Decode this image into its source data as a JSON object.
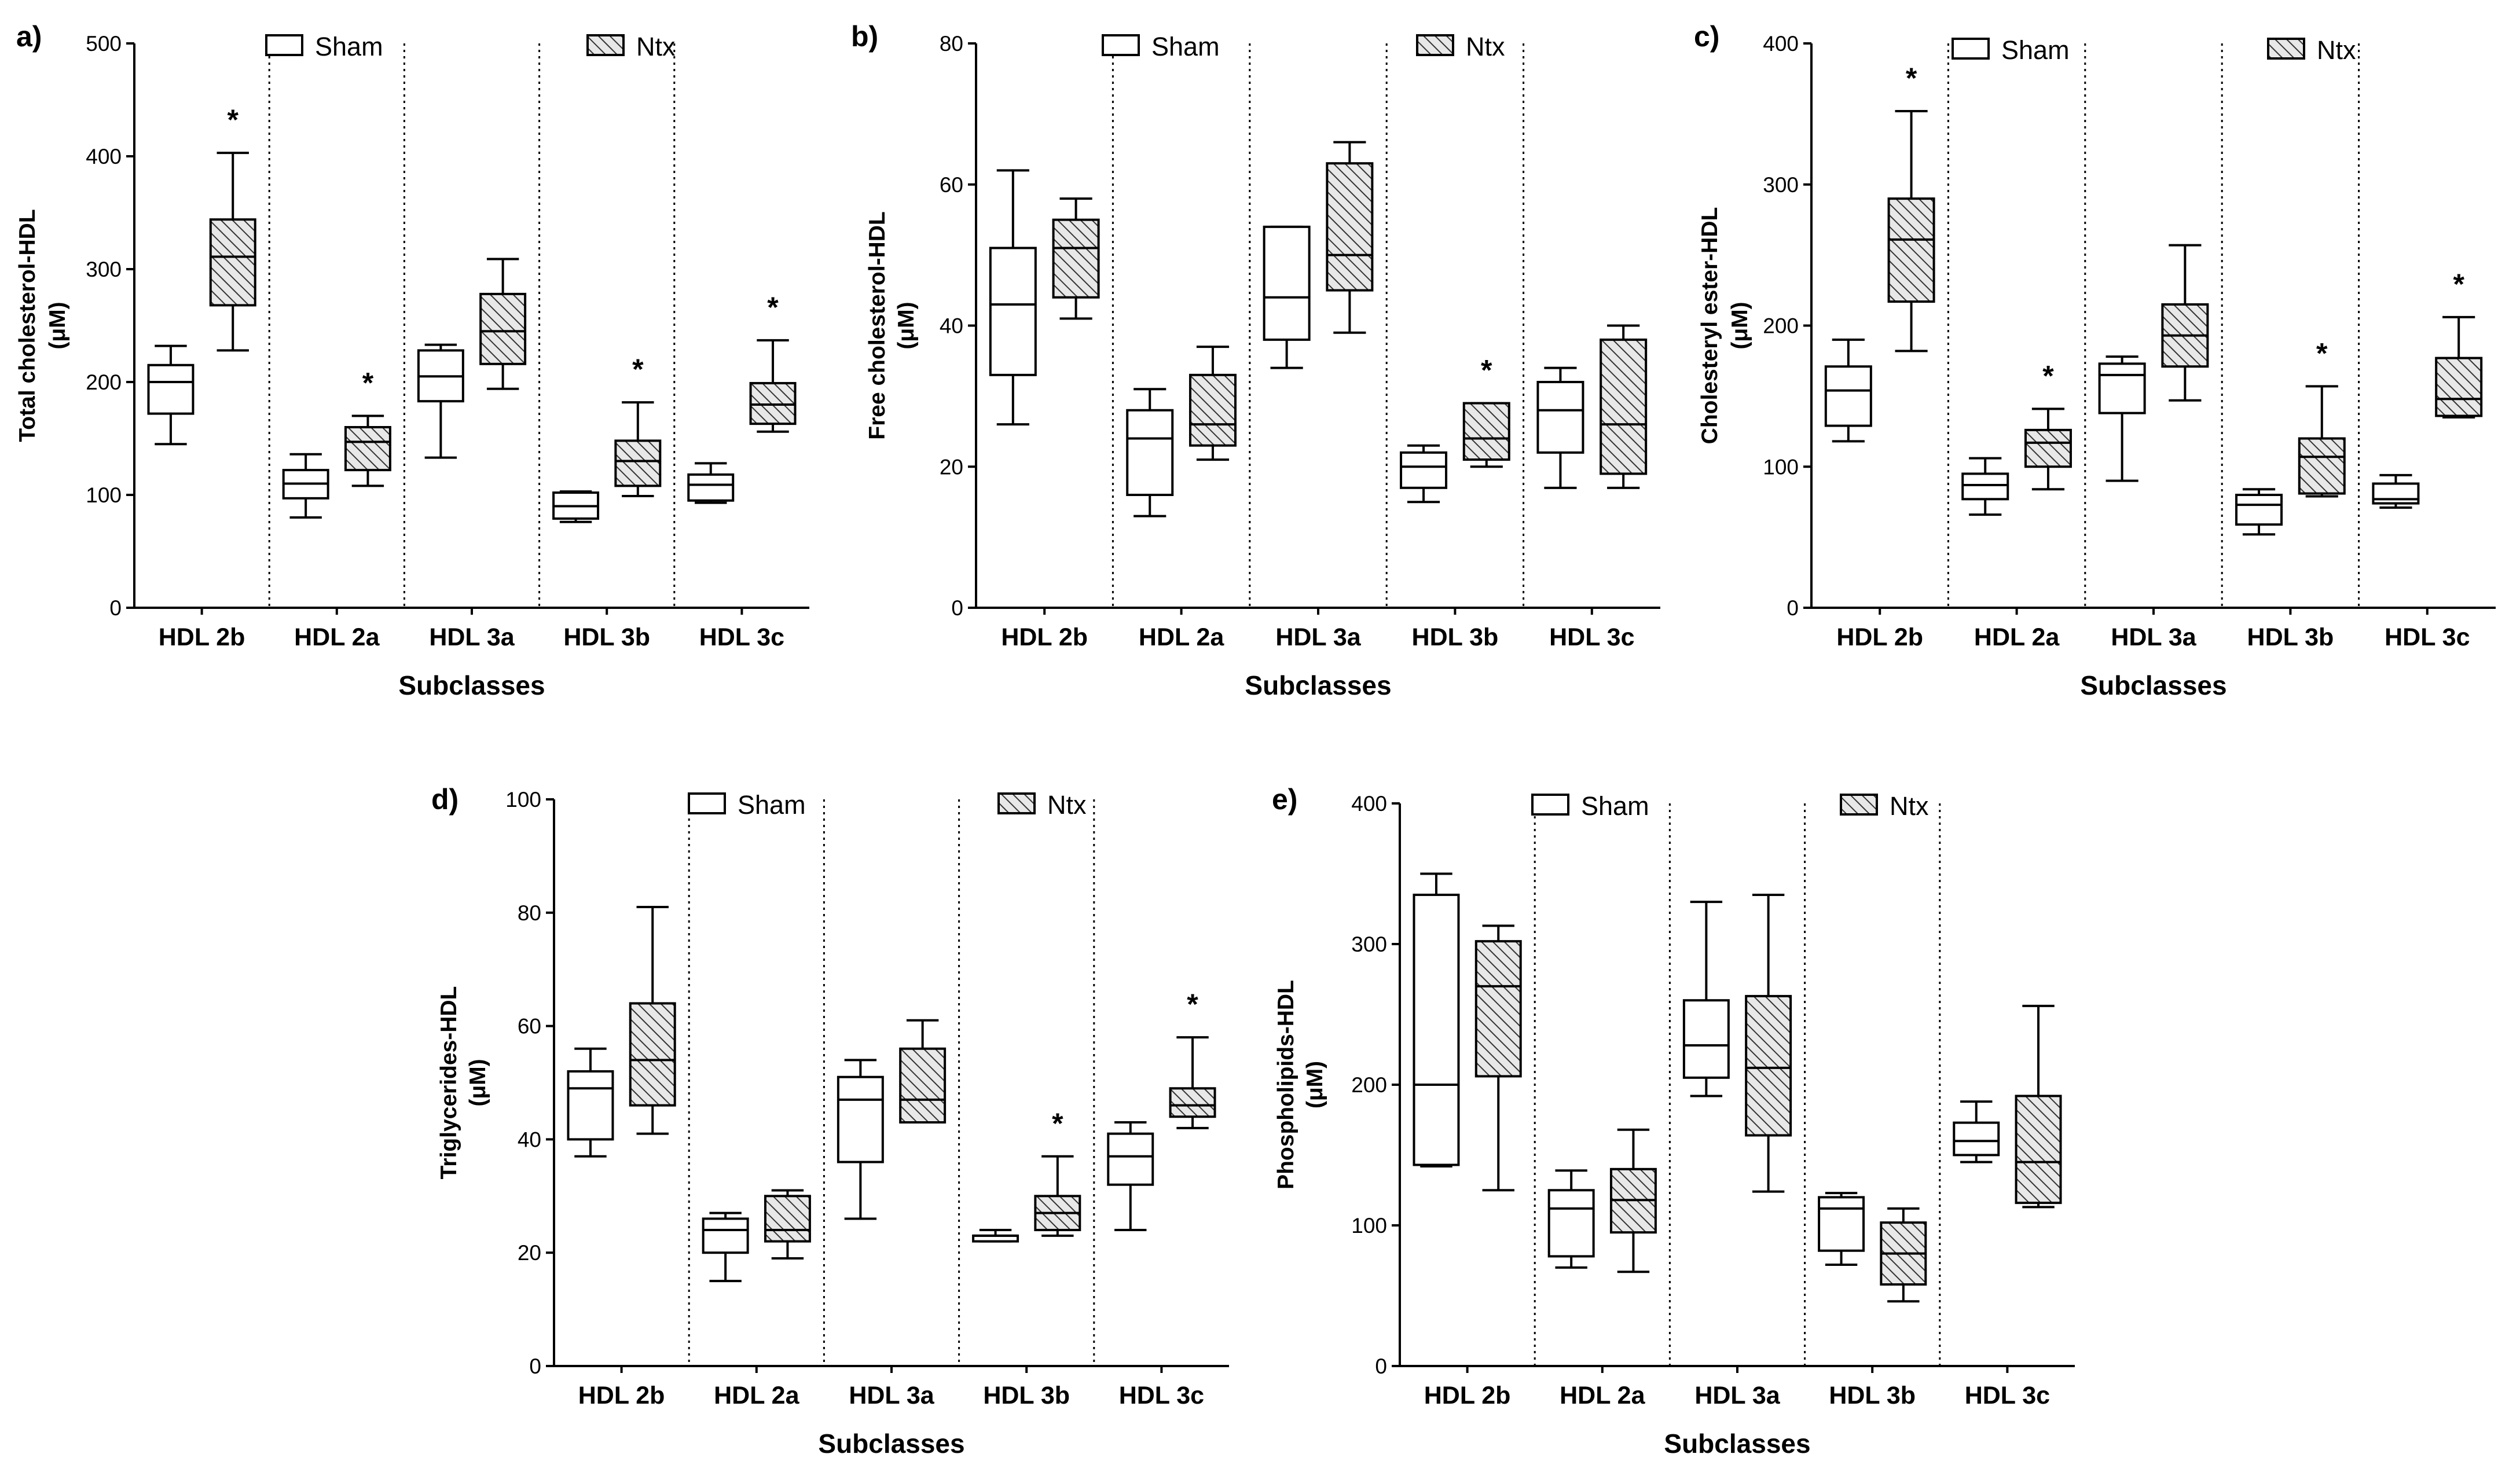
{
  "figure": {
    "colors": {
      "sham_fill": "#ffffff",
      "ntx_fill": "#e8e8e8",
      "ntx_hatch": "#333333",
      "line": "#000000"
    },
    "legend": {
      "sham": "Sham",
      "ntx": "Ntx"
    }
  },
  "chart_data": [
    {
      "panel": "a)",
      "type": "box",
      "ylabel_line1": "Total cholesterol-HDL",
      "ylabel_line2": "(μM)",
      "xlabel": "Subclasses",
      "ylim": [
        0,
        500
      ],
      "yticks": [
        0,
        100,
        200,
        300,
        400,
        500
      ],
      "categories": [
        "HDL 2b",
        "HDL 2a",
        "HDL 3a",
        "HDL 3b",
        "HDL 3c"
      ],
      "series": [
        {
          "name": "Sham",
          "boxes": [
            [
              145,
              172,
              200,
              215,
              232
            ],
            [
              80,
              97,
              110,
              122,
              136
            ],
            [
              133,
              183,
              205,
              228,
              233
            ],
            [
              76,
              79,
              90,
              102,
              103
            ],
            [
              93,
              95,
              109,
              118,
              128
            ]
          ],
          "stars": [
            false,
            false,
            false,
            false,
            false
          ]
        },
        {
          "name": "Ntx",
          "boxes": [
            [
              228,
              268,
              311,
              344,
              403
            ],
            [
              108,
              122,
              147,
              160,
              170
            ],
            [
              194,
              216,
              245,
              278,
              309
            ],
            [
              99,
              108,
              130,
              148,
              182
            ],
            [
              156,
              163,
              180,
              199,
              237
            ]
          ],
          "stars": [
            true,
            true,
            false,
            true,
            true
          ]
        }
      ]
    },
    {
      "panel": "b)",
      "type": "box",
      "ylabel_line1": "Free cholesterol-HDL",
      "ylabel_line2": "(μM)",
      "xlabel": "Subclasses",
      "ylim": [
        0,
        80
      ],
      "yticks": [
        0,
        20,
        40,
        60,
        80
      ],
      "categories": [
        "HDL 2b",
        "HDL 2a",
        "HDL 3a",
        "HDL 3b",
        "HDL 3c"
      ],
      "series": [
        {
          "name": "Sham",
          "boxes": [
            [
              26,
              33,
              43,
              51,
              62
            ],
            [
              13,
              16,
              24,
              28,
              31
            ],
            [
              34,
              38,
              44,
              54,
              54
            ],
            [
              15,
              17,
              20,
              22,
              23
            ],
            [
              17,
              22,
              28,
              32,
              34
            ]
          ],
          "stars": [
            false,
            false,
            false,
            false,
            false
          ]
        },
        {
          "name": "Ntx",
          "boxes": [
            [
              41,
              44,
              51,
              55,
              58
            ],
            [
              21,
              23,
              26,
              33,
              37
            ],
            [
              39,
              45,
              50,
              63,
              66
            ],
            [
              20,
              21,
              24,
              29,
              29
            ],
            [
              17,
              19,
              26,
              38,
              40
            ]
          ],
          "stars": [
            false,
            false,
            false,
            true,
            false
          ]
        }
      ]
    },
    {
      "panel": "c)",
      "type": "box",
      "ylabel_line1": "Cholesteryl ester-HDL",
      "ylabel_line2": "(μM)",
      "xlabel": "Subclasses",
      "ylim": [
        0,
        400
      ],
      "yticks": [
        0,
        100,
        200,
        300,
        400
      ],
      "categories": [
        "HDL 2b",
        "HDL 2a",
        "HDL 3a",
        "HDL 3b",
        "HDL 3c"
      ],
      "series": [
        {
          "name": "Sham",
          "boxes": [
            [
              118,
              129,
              154,
              171,
              190
            ],
            [
              66,
              77,
              87,
              95,
              106
            ],
            [
              90,
              138,
              165,
              173,
              178
            ],
            [
              52,
              59,
              73,
              80,
              84
            ],
            [
              71,
              74,
              77,
              88,
              94
            ]
          ],
          "stars": [
            false,
            false,
            false,
            false,
            false
          ]
        },
        {
          "name": "Ntx",
          "boxes": [
            [
              182,
              217,
              261,
              290,
              352
            ],
            [
              84,
              100,
              117,
              126,
              141
            ],
            [
              147,
              171,
              193,
              215,
              257
            ],
            [
              79,
              81,
              107,
              120,
              157
            ],
            [
              135,
              136,
              148,
              177,
              206
            ]
          ],
          "stars": [
            true,
            true,
            false,
            true,
            true
          ]
        }
      ]
    },
    {
      "panel": "d)",
      "type": "box",
      "ylabel_line1": "Triglycerides-HDL",
      "ylabel_line2": "(μM)",
      "xlabel": "Subclasses",
      "ylim": [
        0,
        100
      ],
      "yticks": [
        0,
        20,
        40,
        60,
        80,
        100
      ],
      "categories": [
        "HDL 2b",
        "HDL 2a",
        "HDL 3a",
        "HDL 3b",
        "HDL 3c"
      ],
      "series": [
        {
          "name": "Sham",
          "boxes": [
            [
              37,
              40,
              49,
              52,
              56
            ],
            [
              15,
              20,
              24,
              26,
              27
            ],
            [
              26,
              36,
              47,
              51,
              54
            ],
            [
              22,
              22,
              23,
              23,
              24
            ],
            [
              24,
              32,
              37,
              41,
              43
            ]
          ],
          "stars": [
            false,
            false,
            false,
            false,
            false
          ]
        },
        {
          "name": "Ntx",
          "boxes": [
            [
              41,
              46,
              54,
              64,
              81
            ],
            [
              19,
              22,
              24,
              30,
              31
            ],
            [
              43,
              43,
              47,
              56,
              61
            ],
            [
              23,
              24,
              27,
              30,
              37
            ],
            [
              42,
              44,
              46,
              49,
              58
            ]
          ],
          "stars": [
            false,
            false,
            false,
            true,
            true
          ]
        }
      ]
    },
    {
      "panel": "e)",
      "type": "box",
      "ylabel_line1": "Phospholipids-HDL",
      "ylabel_line2": "(μM)",
      "xlabel": "Subclasses",
      "ylim": [
        0,
        400
      ],
      "yticks": [
        0,
        100,
        200,
        300,
        400
      ],
      "categories": [
        "HDL 2b",
        "HDL 2a",
        "HDL 3a",
        "HDL 3b",
        "HDL 3c"
      ],
      "series": [
        {
          "name": "Sham",
          "boxes": [
            [
              142,
              143,
              200,
              335,
              350
            ],
            [
              70,
              78,
              112,
              125,
              139
            ],
            [
              192,
              205,
              228,
              260,
              330
            ],
            [
              72,
              82,
              112,
              120,
              123
            ],
            [
              145,
              150,
              160,
              173,
              188
            ]
          ],
          "stars": [
            false,
            false,
            false,
            false,
            false
          ]
        },
        {
          "name": "Ntx",
          "boxes": [
            [
              125,
              206,
              270,
              302,
              313
            ],
            [
              67,
              95,
              118,
              140,
              168
            ],
            [
              124,
              164,
              212,
              263,
              335
            ],
            [
              46,
              58,
              80,
              102,
              112
            ],
            [
              113,
              116,
              145,
              192,
              256
            ]
          ],
          "stars": [
            false,
            false,
            false,
            false,
            false
          ]
        }
      ]
    }
  ]
}
